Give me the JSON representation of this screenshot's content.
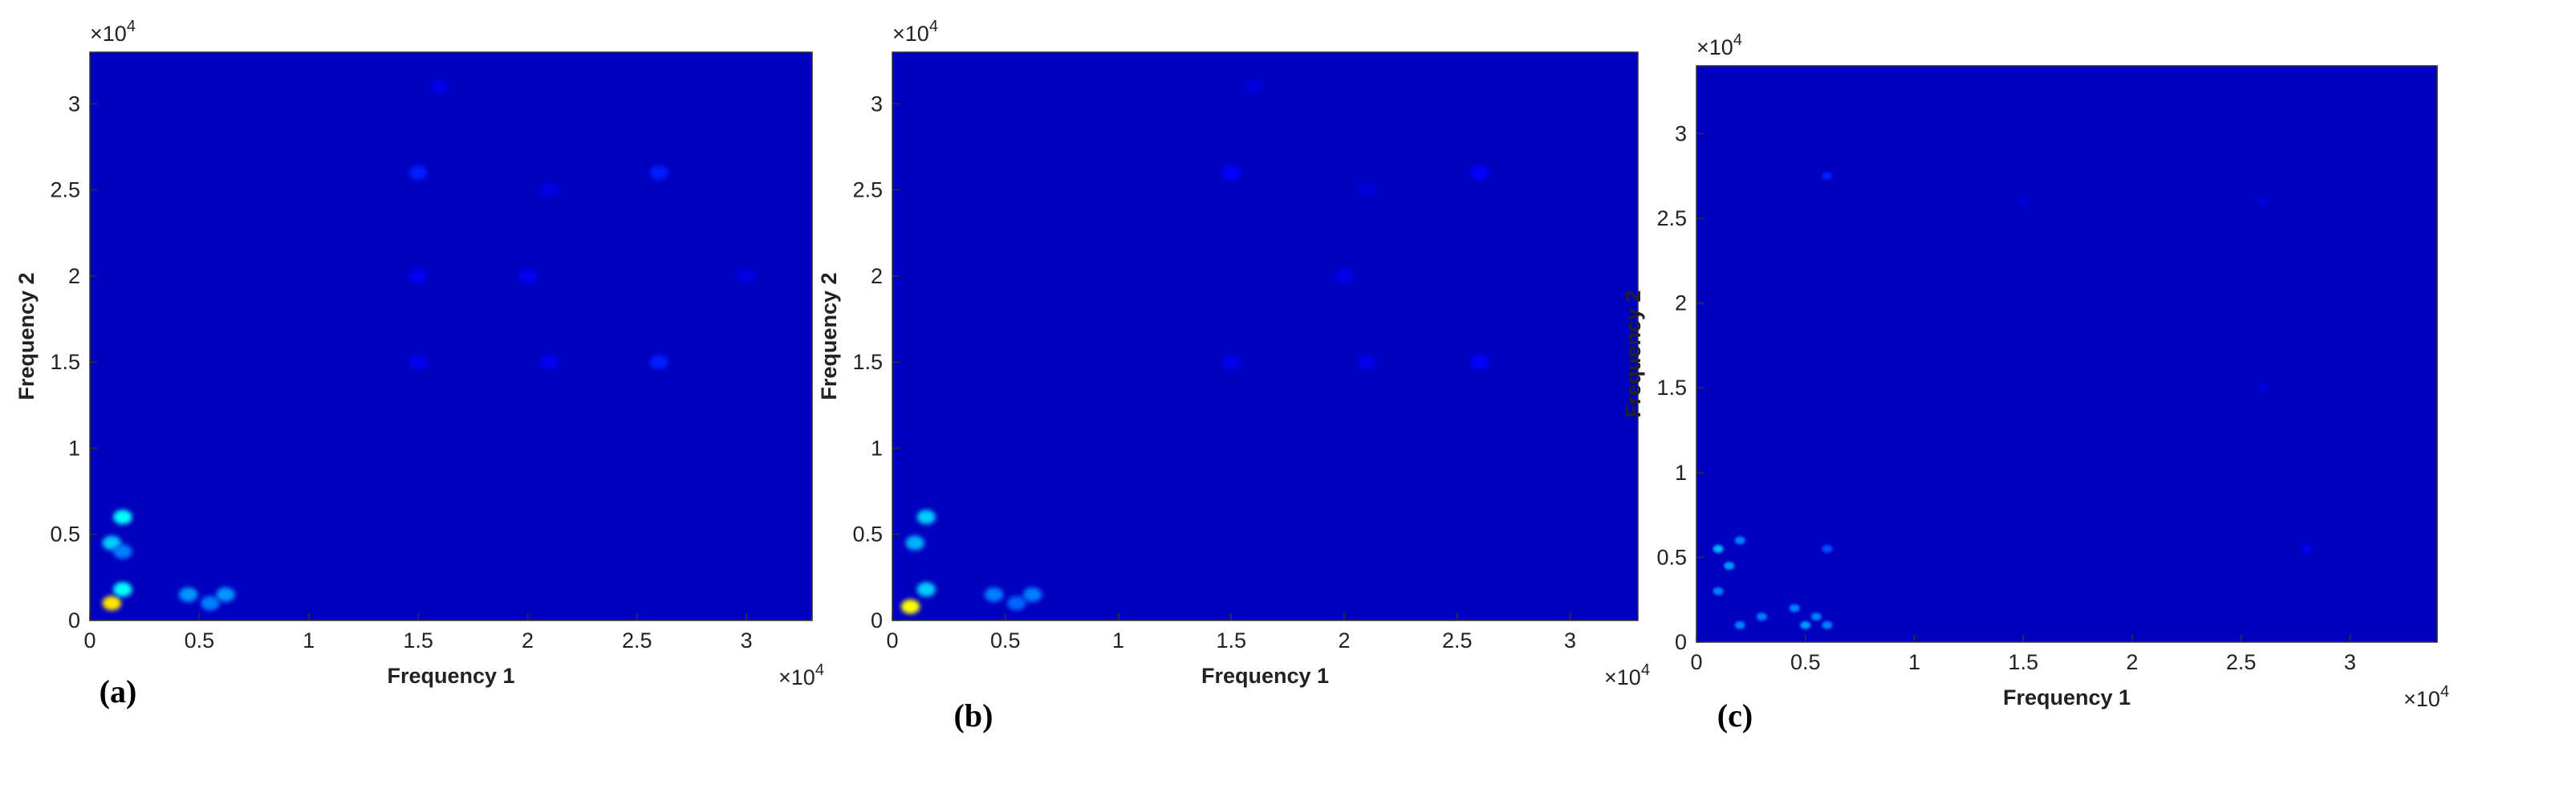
{
  "chart_data": [
    {
      "type": "heatmap",
      "panel_label": "(a)",
      "xlabel": "Frequency 1",
      "ylabel": "Frequency 2",
      "x_scale_label": "×10",
      "x_scale_power": "4",
      "y_scale_label": "×10",
      "y_scale_power": "4",
      "xlim": [
        0,
        3.3
      ],
      "ylim": [
        0,
        3.3
      ],
      "xticks": [
        0,
        0.5,
        1,
        1.5,
        2,
        2.5,
        3
      ],
      "yticks": [
        0,
        0.5,
        1,
        1.5,
        2,
        2.5,
        3
      ],
      "colormap": [
        "#00007f",
        "#0000ff",
        "#00ffff",
        "#ffff00",
        "#ff0000",
        "#7f0000"
      ],
      "background": 0.1,
      "x": [
        0.1,
        0.15,
        0.1,
        0.15,
        0.15,
        0.45,
        0.55,
        0.62,
        1.5,
        2.6,
        2.6,
        1.5,
        2.0,
        2.1,
        3.0,
        1.6,
        2.1,
        1.5
      ],
      "y": [
        0.1,
        0.6,
        0.45,
        0.18,
        0.4,
        0.15,
        0.1,
        0.15,
        2.6,
        2.6,
        1.5,
        1.5,
        2.0,
        1.5,
        2.0,
        3.1,
        2.5,
        2.0
      ],
      "values": [
        0.62,
        0.4,
        0.36,
        0.4,
        0.3,
        0.32,
        0.3,
        0.32,
        0.22,
        0.22,
        0.22,
        0.18,
        0.18,
        0.18,
        0.16,
        0.16,
        0.16,
        0.18
      ]
    },
    {
      "type": "heatmap",
      "panel_label": "(b)",
      "xlabel": "Frequency 1",
      "ylabel": "Frequency 2",
      "x_scale_label": "×10",
      "x_scale_power": "4",
      "y_scale_label": "×10",
      "y_scale_power": "4",
      "xlim": [
        0,
        3.3
      ],
      "ylim": [
        0,
        3.3
      ],
      "xticks": [
        0,
        0.5,
        1,
        1.5,
        2,
        2.5,
        3
      ],
      "yticks": [
        0,
        0.5,
        1,
        1.5,
        2,
        2.5,
        3
      ],
      "colormap": [
        "#00007f",
        "#0000ff",
        "#00ffff",
        "#ffff00",
        "#ff0000",
        "#7f0000"
      ],
      "background": 0.1,
      "x": [
        0.08,
        0.15,
        0.1,
        0.15,
        0.45,
        0.55,
        0.62,
        1.5,
        2.6,
        2.6,
        1.5,
        2.0,
        2.1,
        1.6,
        2.1
      ],
      "y": [
        0.08,
        0.6,
        0.45,
        0.18,
        0.15,
        0.1,
        0.15,
        2.6,
        2.6,
        1.5,
        1.5,
        2.0,
        1.5,
        3.1,
        2.5
      ],
      "values": [
        0.6,
        0.36,
        0.34,
        0.36,
        0.3,
        0.28,
        0.3,
        0.2,
        0.2,
        0.2,
        0.17,
        0.17,
        0.17,
        0.15,
        0.15
      ]
    },
    {
      "type": "heatmap",
      "panel_label": "(c)",
      "xlabel": "Frequency 1",
      "ylabel": "Frequency 2",
      "x_scale_label": "×10",
      "x_scale_power": "4",
      "y_scale_label": "×10",
      "y_scale_power": "4",
      "xlim": [
        0,
        3.4
      ],
      "ylim": [
        0,
        3.4
      ],
      "xticks": [
        0,
        0.5,
        1,
        1.5,
        2,
        2.5,
        3
      ],
      "yticks": [
        0,
        0.5,
        1,
        1.5,
        2,
        2.5,
        3
      ],
      "colormap": [
        "#00007f",
        "#0000ff",
        "#00ffff",
        "#ffff00",
        "#ff0000",
        "#7f0000"
      ],
      "background": 0.1,
      "x": [
        0.1,
        0.15,
        0.2,
        0.3,
        0.45,
        0.5,
        0.55,
        0.6,
        0.6,
        2.6,
        1.5,
        2.6,
        2.8,
        0.6,
        0.1,
        0.2
      ],
      "y": [
        0.55,
        0.45,
        0.1,
        0.15,
        0.2,
        0.1,
        0.15,
        0.55,
        2.75,
        2.6,
        2.6,
        1.5,
        0.55,
        0.1,
        0.3,
        0.6
      ],
      "values": [
        0.34,
        0.32,
        0.3,
        0.3,
        0.3,
        0.32,
        0.3,
        0.26,
        0.22,
        0.16,
        0.15,
        0.16,
        0.18,
        0.3,
        0.3,
        0.3
      ]
    }
  ]
}
